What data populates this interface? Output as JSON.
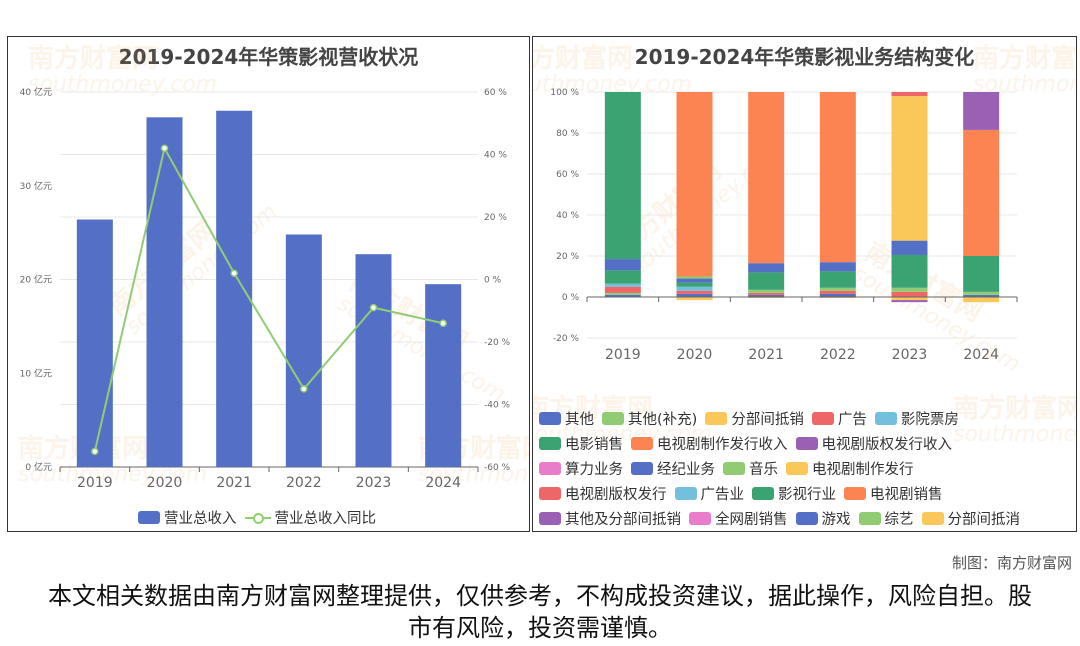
{
  "credit": "制图：南方财富网",
  "disclaimer": "本文相关数据由南方财富网整理提供，仅供参考，不构成投资建议，据此操作，风险自担。股市有风险，投资需谨慎。",
  "watermark": {
    "cn": "南方财富网",
    "en": "southmoney.com"
  },
  "chart_data": [
    {
      "type": "bar",
      "title": "2019-2024年华策影视营收状况",
      "categories": [
        "2019",
        "2020",
        "2021",
        "2022",
        "2023",
        "2024"
      ],
      "ylim": [
        0,
        40
      ],
      "y2lim": [
        -60,
        60
      ],
      "yticks": [
        "0 亿元",
        "10 亿元",
        "20 亿元",
        "30 亿元",
        "40 亿元"
      ],
      "y2ticks": [
        "-60 %",
        "-40 %",
        "-20 %",
        "0 %",
        "20 %",
        "40 %",
        "60 %"
      ],
      "grid": true,
      "legend": "bottom",
      "series": [
        {
          "name": "营业总收入",
          "type": "bar",
          "axis": "left",
          "color": "#5470c6",
          "values": [
            26.4,
            37.3,
            38.0,
            24.8,
            22.7,
            19.5
          ]
        },
        {
          "name": "营业总收入同比",
          "type": "line",
          "axis": "right",
          "color": "#91cc75",
          "values": [
            -55,
            42,
            2,
            -35,
            -9,
            -14
          ]
        }
      ]
    },
    {
      "type": "bar",
      "stacked": true,
      "title": "2019-2024年华策影视业务结构变化",
      "categories": [
        "2019",
        "2020",
        "2021",
        "2022",
        "2023",
        "2024"
      ],
      "ylim": [
        -20,
        100
      ],
      "yticks": [
        "-20 %",
        "0 %",
        "20 %",
        "40 %",
        "60 %",
        "80 %",
        "100 %"
      ],
      "grid": true,
      "legend": "bottom",
      "legend_items": [
        {
          "name": "其他",
          "color": "#5470c6"
        },
        {
          "name": "其他(补充)",
          "color": "#91cc75"
        },
        {
          "name": "分部间抵销",
          "color": "#fac858"
        },
        {
          "name": "广告",
          "color": "#ee6666"
        },
        {
          "name": "影院票房",
          "color": "#73c0de"
        },
        {
          "name": "电影销售",
          "color": "#3ba272"
        },
        {
          "name": "电视剧制作发行收入",
          "color": "#fc8452"
        },
        {
          "name": "电视剧版权发行收入",
          "color": "#9a60b4"
        },
        {
          "name": "算力业务",
          "color": "#ea7ccc"
        },
        {
          "name": "经纪业务",
          "color": "#5470c6"
        },
        {
          "name": "音乐",
          "color": "#91cc75"
        },
        {
          "name": "电视剧制作发行",
          "color": "#fac858"
        },
        {
          "name": "电视剧版权发行",
          "color": "#ee6666"
        },
        {
          "name": "广告业",
          "color": "#73c0de"
        },
        {
          "name": "影视行业",
          "color": "#3ba272"
        },
        {
          "name": "电视剧销售",
          "color": "#fc8452"
        },
        {
          "name": "其他及分部间抵销",
          "color": "#9a60b4"
        },
        {
          "name": "全网剧销售",
          "color": "#ea7ccc"
        },
        {
          "name": "游戏",
          "color": "#5470c6"
        },
        {
          "name": "综艺",
          "color": "#91cc75"
        },
        {
          "name": "分部间抵消",
          "color": "#fac858"
        }
      ],
      "series": [
        {
          "name": "2019",
          "segments": [
            {
              "label": "其他",
              "value": 1.0,
              "color": "#5470c6"
            },
            {
              "label": "其他(补充)",
              "value": 1.0,
              "color": "#91cc75"
            },
            {
              "label": "广告",
              "value": 3.0,
              "color": "#ee6666"
            },
            {
              "label": "影院票房",
              "value": 1.5,
              "color": "#73c0de"
            },
            {
              "label": "影视行业",
              "value": 6.5,
              "color": "#3ba272"
            },
            {
              "label": "经纪业务",
              "value": 5.5,
              "color": "#5470c6"
            },
            {
              "label": "电影销售",
              "value": 81.5,
              "color": "#3ba272"
            }
          ]
        },
        {
          "name": "2020",
          "segments": [
            {
              "label": "分部间抵销",
              "value": -1.5,
              "color": "#fac858"
            },
            {
              "label": "其他",
              "value": 1.5,
              "color": "#5470c6"
            },
            {
              "label": "广告",
              "value": 1.5,
              "color": "#ee6666"
            },
            {
              "label": "影院票房",
              "value": 2.0,
              "color": "#73c0de"
            },
            {
              "label": "影视行业",
              "value": 2.0,
              "color": "#3ba272"
            },
            {
              "label": "经纪业务",
              "value": 2.0,
              "color": "#5470c6"
            },
            {
              "label": "音乐",
              "value": 1.0,
              "color": "#91cc75"
            },
            {
              "label": "电视剧制作发行收入",
              "value": 90.0,
              "color": "#fc8452"
            }
          ]
        },
        {
          "name": "2021",
          "segments": [
            {
              "label": "分部间抵销",
              "value": -0.5,
              "color": "#fac858"
            },
            {
              "label": "其他",
              "value": 1.0,
              "color": "#5470c6"
            },
            {
              "label": "广告",
              "value": 1.0,
              "color": "#ee6666"
            },
            {
              "label": "音乐",
              "value": 1.5,
              "color": "#91cc75"
            },
            {
              "label": "影视行业",
              "value": 8.5,
              "color": "#3ba272"
            },
            {
              "label": "经纪业务",
              "value": 4.5,
              "color": "#5470c6"
            },
            {
              "label": "电视剧制作发行收入",
              "value": 83.5,
              "color": "#fc8452"
            }
          ]
        },
        {
          "name": "2022",
          "segments": [
            {
              "label": "分部间抵销",
              "value": -0.5,
              "color": "#fac858"
            },
            {
              "label": "其他",
              "value": 1.5,
              "color": "#5470c6"
            },
            {
              "label": "广告",
              "value": 1.5,
              "color": "#ee6666"
            },
            {
              "label": "音乐",
              "value": 1.5,
              "color": "#91cc75"
            },
            {
              "label": "影视行业",
              "value": 8.0,
              "color": "#3ba272"
            },
            {
              "label": "经纪业务",
              "value": 4.5,
              "color": "#5470c6"
            },
            {
              "label": "电视剧制作发行收入",
              "value": 83.0,
              "color": "#fc8452"
            }
          ]
        },
        {
          "name": "2023",
          "segments": [
            {
              "label": "分部间抵销",
              "value": -1.5,
              "color": "#fac858"
            },
            {
              "label": "其他及分部间抵销",
              "value": -1.0,
              "color": "#9a60b4"
            },
            {
              "label": "广告",
              "value": 2.5,
              "color": "#ee6666"
            },
            {
              "label": "音乐",
              "value": 2.0,
              "color": "#91cc75"
            },
            {
              "label": "影视行业",
              "value": 16.0,
              "color": "#3ba272"
            },
            {
              "label": "经纪业务",
              "value": 7.0,
              "color": "#5470c6"
            },
            {
              "label": "电视剧制作发行",
              "value": 70.5,
              "color": "#fac858"
            },
            {
              "label": "电视剧版权发行",
              "value": 2.0,
              "color": "#ee6666"
            }
          ]
        },
        {
          "name": "2024",
          "segments": [
            {
              "label": "分部间抵消",
              "value": -2.5,
              "color": "#fac858"
            },
            {
              "label": "其他",
              "value": 1.0,
              "color": "#5470c6"
            },
            {
              "label": "音乐",
              "value": 1.5,
              "color": "#91cc75"
            },
            {
              "label": "影视行业",
              "value": 17.5,
              "color": "#3ba272"
            },
            {
              "label": "电视剧销售",
              "value": 61.5,
              "color": "#fc8452"
            },
            {
              "label": "其他及分部间抵销",
              "value": 18.5,
              "color": "#9a60b4"
            }
          ]
        }
      ]
    }
  ]
}
